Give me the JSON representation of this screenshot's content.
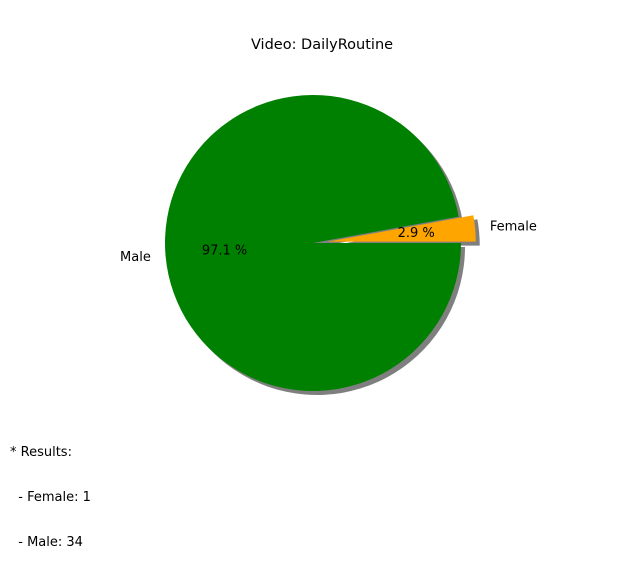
{
  "chart_data": {
    "type": "pie",
    "title": "Video: DailyRoutine",
    "start_angle_deg": 0,
    "counterclock": true,
    "shadow": true,
    "slices": [
      {
        "label": "Female",
        "value": 1,
        "pct_label": "2.9 %",
        "color": "#ffa500",
        "explode": 0.1
      },
      {
        "label": "Male",
        "value": 34,
        "pct_label": "97.1 %",
        "color": "#008000",
        "explode": 0
      }
    ]
  },
  "results": {
    "header": "* Results:",
    "lines": [
      "  - Female: 1",
      "  - Male: 34"
    ]
  }
}
